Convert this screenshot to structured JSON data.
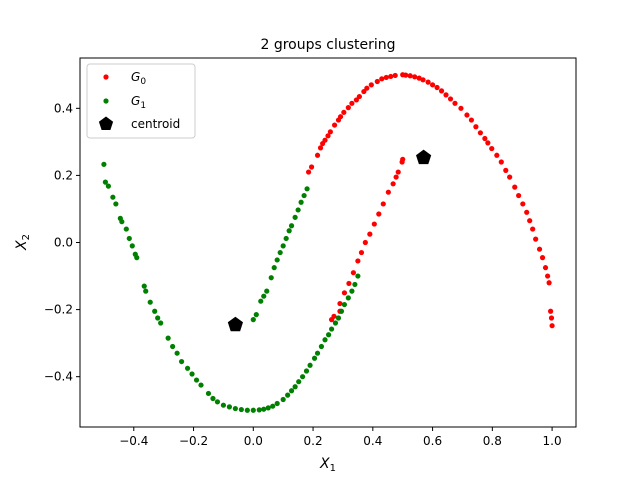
{
  "chart_data": {
    "type": "scatter",
    "title": "2 groups clustering",
    "xlabel": {
      "base": "X",
      "sub": "1"
    },
    "ylabel": {
      "base": "X",
      "sub": "2"
    },
    "xlim": [
      -0.58,
      1.08
    ],
    "ylim": [
      -0.55,
      0.55
    ],
    "xticks": [
      -0.4,
      -0.2,
      0.0,
      0.2,
      0.4,
      0.6,
      0.8,
      1.0
    ],
    "yticks": [
      -0.4,
      -0.2,
      0.0,
      0.2,
      0.4
    ],
    "grid": false,
    "legend_position": "top-left",
    "series": [
      {
        "name": {
          "base": "G",
          "sub": "0"
        },
        "color": "#ff0000",
        "marker": "circle",
        "points": [
          [
            0.185,
            0.21
          ],
          [
            0.195,
            0.225
          ],
          [
            0.215,
            0.26
          ],
          [
            0.225,
            0.282
          ],
          [
            0.232,
            0.295
          ],
          [
            0.24,
            0.305
          ],
          [
            0.25,
            0.318
          ],
          [
            0.258,
            0.33
          ],
          [
            0.272,
            0.35
          ],
          [
            0.285,
            0.365
          ],
          [
            0.292,
            0.375
          ],
          [
            0.303,
            0.388
          ],
          [
            0.318,
            0.402
          ],
          [
            0.33,
            0.415
          ],
          [
            0.345,
            0.425
          ],
          [
            0.355,
            0.435
          ],
          [
            0.37,
            0.45
          ],
          [
            0.38,
            0.46
          ],
          [
            0.395,
            0.47
          ],
          [
            0.415,
            0.48
          ],
          [
            0.43,
            0.488
          ],
          [
            0.445,
            0.492
          ],
          [
            0.46,
            0.495
          ],
          [
            0.475,
            0.498
          ],
          [
            0.5,
            0.5
          ],
          [
            0.51,
            0.499
          ],
          [
            0.525,
            0.497
          ],
          [
            0.54,
            0.494
          ],
          [
            0.555,
            0.49
          ],
          [
            0.568,
            0.485
          ],
          [
            0.585,
            0.478
          ],
          [
            0.6,
            0.47
          ],
          [
            0.615,
            0.462
          ],
          [
            0.63,
            0.452
          ],
          [
            0.645,
            0.44
          ],
          [
            0.66,
            0.428
          ],
          [
            0.675,
            0.415
          ],
          [
            0.695,
            0.4
          ],
          [
            0.715,
            0.38
          ],
          [
            0.73,
            0.365
          ],
          [
            0.745,
            0.345
          ],
          [
            0.76,
            0.327
          ],
          [
            0.775,
            0.31
          ],
          [
            0.785,
            0.297
          ],
          [
            0.798,
            0.28
          ],
          [
            0.815,
            0.26
          ],
          [
            0.83,
            0.24
          ],
          [
            0.845,
            0.215
          ],
          [
            0.858,
            0.195
          ],
          [
            0.875,
            0.165
          ],
          [
            0.888,
            0.14
          ],
          [
            0.902,
            0.115
          ],
          [
            0.915,
            0.09
          ],
          [
            0.925,
            0.065
          ],
          [
            0.935,
            0.04
          ],
          [
            0.945,
            0.01
          ],
          [
            0.958,
            -0.02
          ],
          [
            0.968,
            -0.045
          ],
          [
            0.978,
            -0.075
          ],
          [
            0.985,
            -0.1
          ],
          [
            0.99,
            -0.12
          ],
          [
            0.995,
            -0.205
          ],
          [
            0.998,
            -0.225
          ],
          [
            1.0,
            -0.248
          ],
          [
            0.5,
            0.248
          ],
          [
            0.498,
            0.24
          ],
          [
            0.485,
            0.21
          ],
          [
            0.478,
            0.195
          ],
          [
            0.468,
            0.175
          ],
          [
            0.452,
            0.15
          ],
          [
            0.435,
            0.115
          ],
          [
            0.42,
            0.085
          ],
          [
            0.405,
            0.055
          ],
          [
            0.39,
            0.025
          ],
          [
            0.375,
            0.0
          ],
          [
            0.362,
            -0.03
          ],
          [
            0.35,
            -0.055
          ],
          [
            0.335,
            -0.09
          ],
          [
            0.32,
            -0.122
          ],
          [
            0.305,
            -0.15
          ],
          [
            0.29,
            -0.182
          ],
          [
            0.29,
            -0.205
          ],
          [
            0.27,
            -0.22
          ],
          [
            0.262,
            -0.23
          ]
        ]
      },
      {
        "name": {
          "base": "G",
          "sub": "1"
        },
        "color": "#008000",
        "marker": "circle",
        "points": [
          [
            -0.5,
            0.233
          ],
          [
            -0.495,
            0.18
          ],
          [
            -0.485,
            0.168
          ],
          [
            -0.47,
            0.135
          ],
          [
            -0.46,
            0.115
          ],
          [
            -0.445,
            0.072
          ],
          [
            -0.44,
            0.062
          ],
          [
            -0.425,
            0.04
          ],
          [
            -0.415,
            0.012
          ],
          [
            -0.405,
            -0.01
          ],
          [
            -0.395,
            -0.035
          ],
          [
            -0.39,
            -0.045
          ],
          [
            -0.365,
            -0.13
          ],
          [
            -0.36,
            -0.145
          ],
          [
            -0.345,
            -0.178
          ],
          [
            -0.33,
            -0.205
          ],
          [
            -0.32,
            -0.225
          ],
          [
            -0.31,
            -0.24
          ],
          [
            -0.285,
            -0.285
          ],
          [
            -0.27,
            -0.31
          ],
          [
            -0.255,
            -0.33
          ],
          [
            -0.24,
            -0.355
          ],
          [
            -0.22,
            -0.375
          ],
          [
            -0.205,
            -0.392
          ],
          [
            -0.19,
            -0.41
          ],
          [
            -0.175,
            -0.425
          ],
          [
            -0.15,
            -0.45
          ],
          [
            -0.135,
            -0.465
          ],
          [
            -0.12,
            -0.475
          ],
          [
            -0.1,
            -0.485
          ],
          [
            -0.08,
            -0.49
          ],
          [
            -0.06,
            -0.495
          ],
          [
            -0.04,
            -0.498
          ],
          [
            -0.02,
            -0.5
          ],
          [
            0.0,
            -0.5
          ],
          [
            0.02,
            -0.499
          ],
          [
            0.035,
            -0.497
          ],
          [
            0.05,
            -0.493
          ],
          [
            0.065,
            -0.488
          ],
          [
            0.08,
            -0.48
          ],
          [
            0.1,
            -0.468
          ],
          [
            0.115,
            -0.455
          ],
          [
            0.128,
            -0.442
          ],
          [
            0.14,
            -0.43
          ],
          [
            0.152,
            -0.415
          ],
          [
            0.165,
            -0.4
          ],
          [
            0.178,
            -0.383
          ],
          [
            0.19,
            -0.366
          ],
          [
            0.205,
            -0.345
          ],
          [
            0.215,
            -0.33
          ],
          [
            0.228,
            -0.31
          ],
          [
            0.24,
            -0.29
          ],
          [
            0.252,
            -0.275
          ],
          [
            0.262,
            -0.258
          ],
          [
            0.275,
            -0.24
          ],
          [
            0.285,
            -0.225
          ],
          [
            0.295,
            -0.205
          ],
          [
            0.305,
            -0.185
          ],
          [
            0.318,
            -0.165
          ],
          [
            0.33,
            -0.145
          ],
          [
            0.34,
            -0.125
          ],
          [
            0.35,
            -0.1
          ],
          [
            0.0,
            -0.23
          ],
          [
            0.01,
            -0.215
          ],
          [
            0.025,
            -0.175
          ],
          [
            0.035,
            -0.16
          ],
          [
            0.045,
            -0.145
          ],
          [
            0.06,
            -0.105
          ],
          [
            0.07,
            -0.075
          ],
          [
            0.08,
            -0.052
          ],
          [
            0.09,
            -0.03
          ],
          [
            0.1,
            -0.01
          ],
          [
            0.11,
            0.012
          ],
          [
            0.12,
            0.035
          ],
          [
            0.128,
            0.05
          ],
          [
            0.14,
            0.075
          ],
          [
            0.15,
            0.097
          ],
          [
            0.16,
            0.12
          ],
          [
            0.17,
            0.14
          ],
          [
            0.18,
            0.16
          ]
        ]
      },
      {
        "name": {
          "base": "centroid",
          "sub": ""
        },
        "color": "#000000",
        "marker": "pentagon",
        "points": [
          [
            0.57,
            0.253
          ],
          [
            -0.06,
            -0.245
          ]
        ]
      }
    ]
  }
}
